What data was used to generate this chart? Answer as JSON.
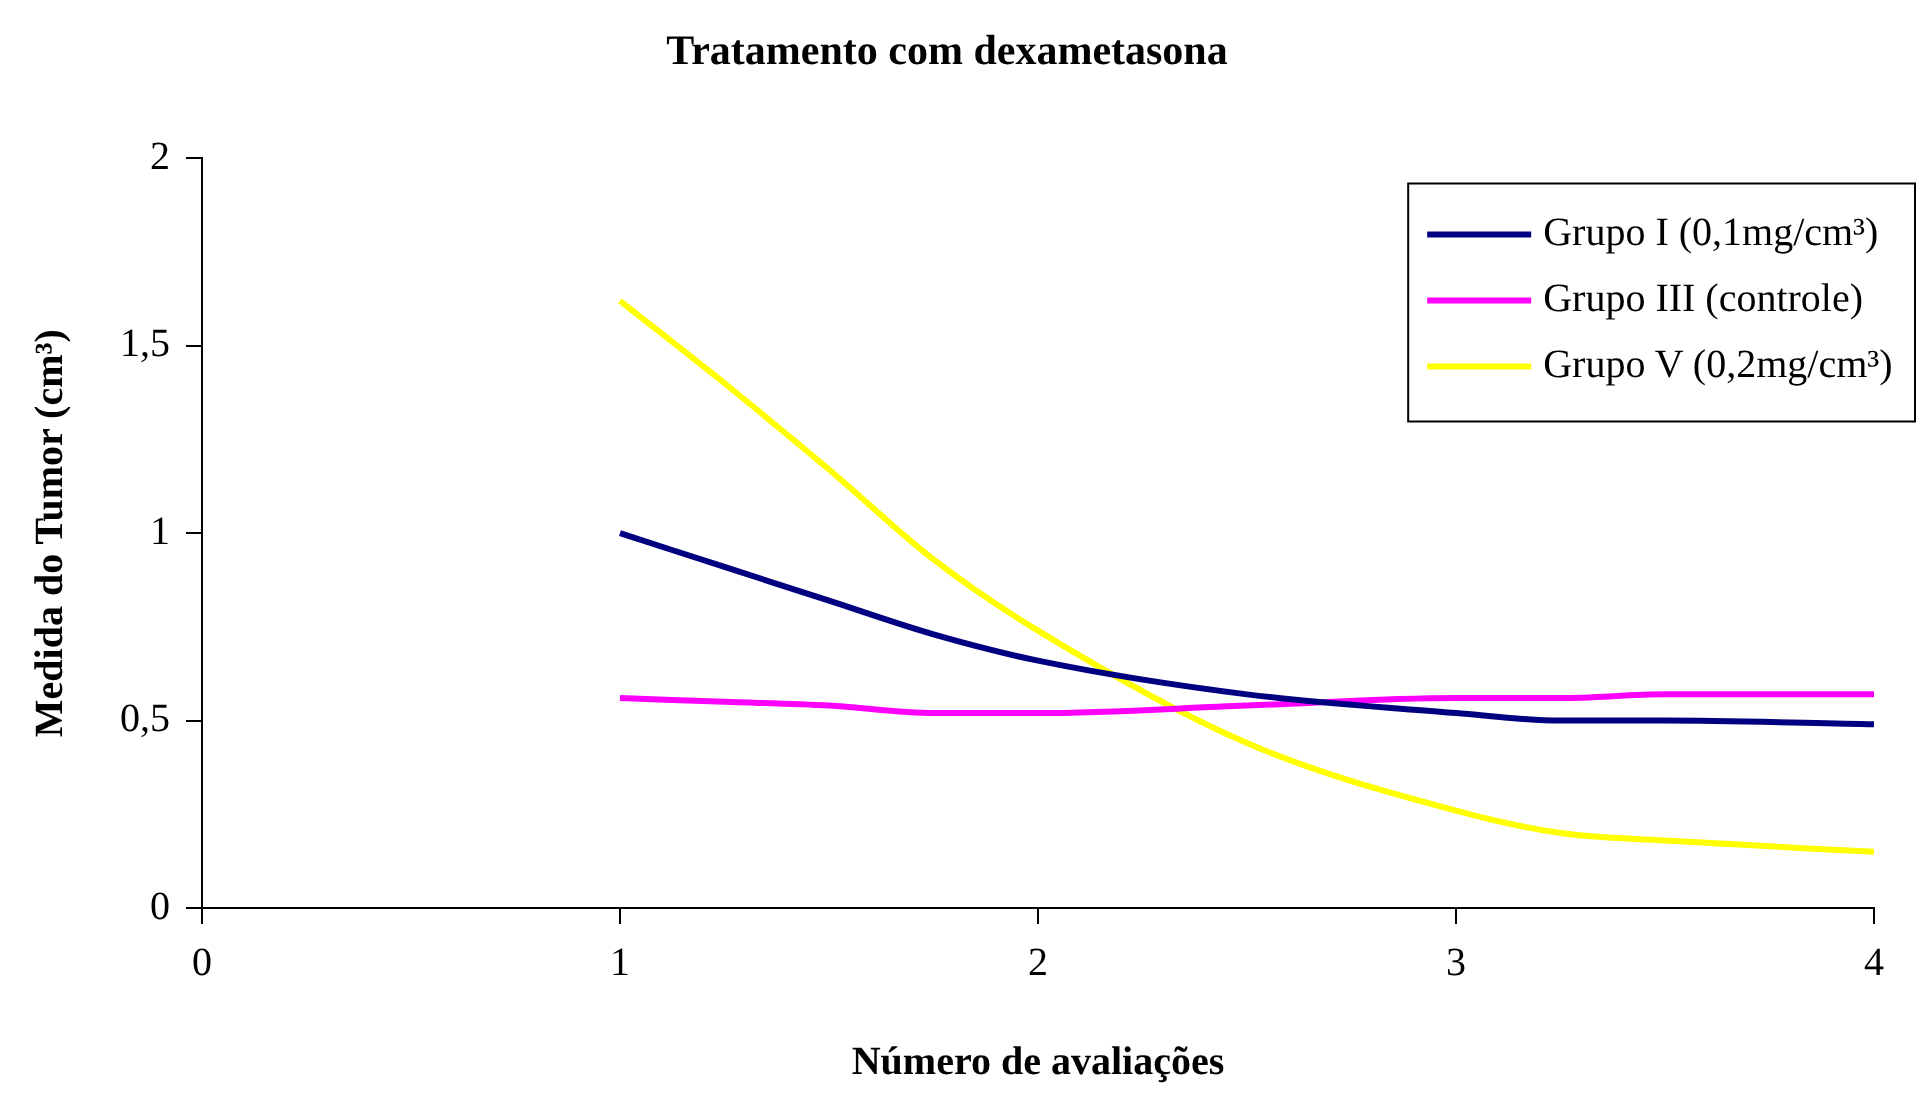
{
  "chart_data": {
    "type": "line",
    "title": "Tratamento com dexametasona",
    "xlabel": "Número de avaliações",
    "ylabel": "Medida do Tumor (cm³)",
    "x": [
      1,
      1.25,
      1.5,
      1.75,
      2,
      2.5,
      3,
      3.25,
      3.5,
      4
    ],
    "series": [
      {
        "name": "Grupo I (0,1mg/cm³)",
        "color": "#000080",
        "values": [
          1.0,
          0.91,
          0.82,
          0.73,
          0.66,
          0.57,
          0.52,
          0.5,
          0.5,
          0.49
        ]
      },
      {
        "name": "Grupo III (controle)",
        "color": "#ff00ff",
        "values": [
          0.56,
          0.55,
          0.54,
          0.52,
          0.52,
          0.54,
          0.56,
          0.56,
          0.57,
          0.57
        ]
      },
      {
        "name": "Grupo V (0,2mg/cm³)",
        "color": "#ffff00",
        "values": [
          1.62,
          1.4,
          1.17,
          0.93,
          0.74,
          0.44,
          0.26,
          0.2,
          0.18,
          0.15
        ]
      }
    ],
    "xlim": [
      0,
      4
    ],
    "xticks": [
      0,
      1,
      2,
      3,
      4
    ],
    "ylim": [
      0,
      2
    ],
    "yticks": [
      0,
      {
        "value": 0.5,
        "label": "0,5"
      },
      1,
      {
        "value": 1.5,
        "label": "1,5"
      },
      2
    ],
    "grid": false,
    "legend": "top right",
    "marker": "none",
    "line_style": "solid"
  }
}
